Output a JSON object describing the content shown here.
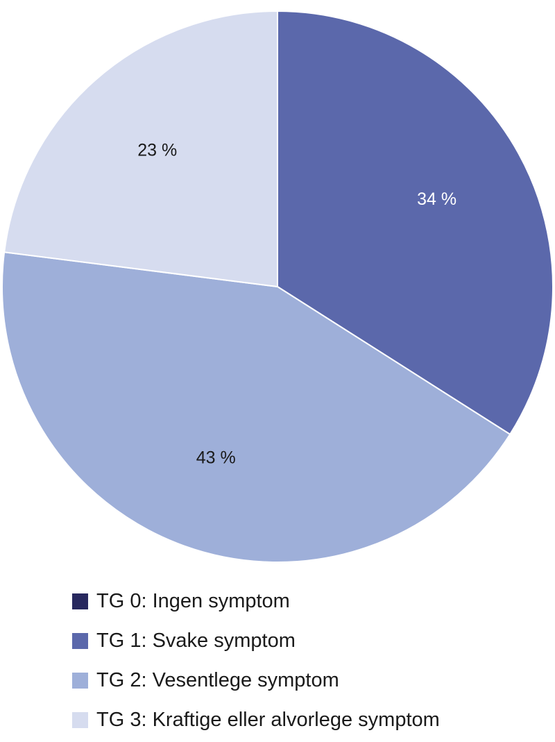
{
  "chart_data": {
    "type": "pie",
    "start": "12 o'clock",
    "direction": "clockwise",
    "series": [
      {
        "label": "TG 0: Ingen symptom",
        "value": 0,
        "color": "#27285e",
        "slice_label": ""
      },
      {
        "label": "TG 1: Svake symptom",
        "value": 34,
        "color": "#5b68ab",
        "slice_label": "34 %",
        "slice_label_color": "#ffffff"
      },
      {
        "label": "TG 2: Vesentlege symptom",
        "value": 43,
        "color": "#9eafd9",
        "slice_label": "43 %",
        "slice_label_color": "#1a1a1a"
      },
      {
        "label": "TG 3: Kraftige eller alvorlege symptom",
        "value": 23,
        "color": "#d6dcef",
        "slice_label": "23 %",
        "slice_label_color": "#1a1a1a"
      }
    ]
  }
}
